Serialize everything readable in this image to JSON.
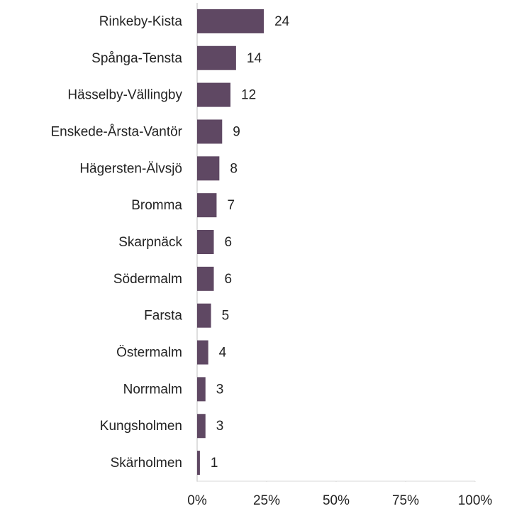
{
  "chart_data": {
    "type": "barh",
    "categories": [
      "Rinkeby-Kista",
      "Spånga-Tensta",
      "Hässelby-Vällingby",
      "Enskede-Årsta-Vantör",
      "Hägersten-Älvsjö",
      "Bromma",
      "Skarpnäck",
      "Södermalm",
      "Farsta",
      "Östermalm",
      "Norrmalm",
      "Kungsholmen",
      "Skärholmen"
    ],
    "values": [
      24,
      14,
      12,
      9,
      8,
      7,
      6,
      6,
      5,
      4,
      3,
      3,
      1
    ],
    "color": "#5f4863",
    "xlim": [
      0,
      100
    ],
    "xticks": [
      {
        "value": 0,
        "label": "0%"
      },
      {
        "value": 25,
        "label": "25%"
      },
      {
        "value": 50,
        "label": "50%"
      },
      {
        "value": 75,
        "label": "75%"
      },
      {
        "value": 100,
        "label": "100%"
      }
    ],
    "grid": false
  }
}
